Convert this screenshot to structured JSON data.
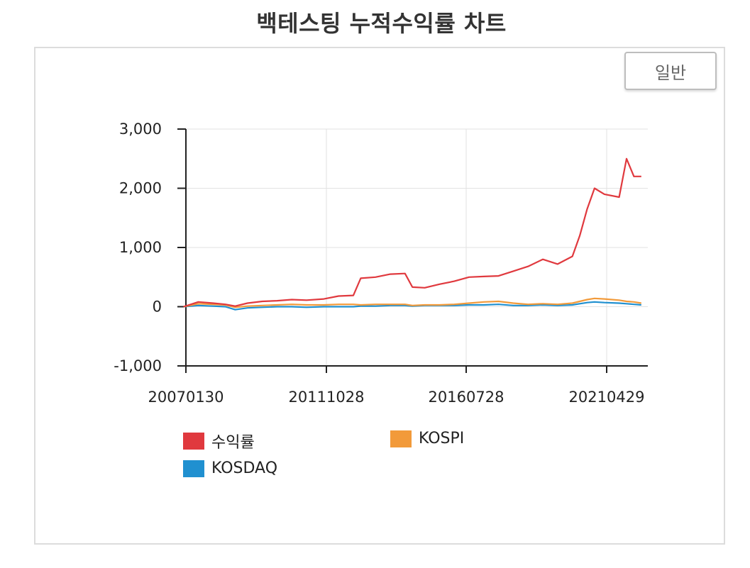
{
  "page": {
    "title": "백테스팅 누적수익률 차트"
  },
  "toolbar": {
    "mode_label": "일반"
  },
  "chart_data": {
    "type": "line",
    "title": "백테스팅 누적수익률 차트",
    "xlabel": "",
    "ylabel": "",
    "ylim": [
      -1000,
      3000
    ],
    "y_ticks": [
      {
        "value": 3000,
        "label": "3,000"
      },
      {
        "value": 2000,
        "label": "2,000"
      },
      {
        "value": 1000,
        "label": "1,000"
      },
      {
        "value": 0,
        "label": "0"
      },
      {
        "value": -1000,
        "label": "-1,000"
      }
    ],
    "x_ticks": [
      "20070130",
      "20111028",
      "20160728",
      "20210429"
    ],
    "grid": true,
    "legend_position": "bottom-left",
    "x": [
      "2007-01",
      "2007-07",
      "2008-01",
      "2008-06",
      "2008-10",
      "2009-03",
      "2009-09",
      "2010-03",
      "2010-09",
      "2011-03",
      "2011-10",
      "2012-04",
      "2012-10",
      "2013-01",
      "2013-07",
      "2014-01",
      "2014-07",
      "2014-10",
      "2015-03",
      "2015-09",
      "2016-03",
      "2016-09",
      "2017-03",
      "2017-09",
      "2018-03",
      "2018-09",
      "2019-03",
      "2019-09",
      "2020-03",
      "2020-06",
      "2020-09",
      "2020-12",
      "2021-04",
      "2021-10",
      "2022-01",
      "2022-04",
      "2022-07"
    ],
    "series": [
      {
        "name": "수익률",
        "color": "#e0393e",
        "values": [
          0,
          80,
          60,
          40,
          10,
          60,
          90,
          100,
          120,
          110,
          130,
          180,
          190,
          480,
          500,
          550,
          560,
          330,
          320,
          380,
          430,
          500,
          510,
          520,
          600,
          680,
          800,
          720,
          850,
          1200,
          1650,
          2000,
          1900,
          1850,
          2500,
          2200,
          2200
        ]
      },
      {
        "name": "KOSPI",
        "color": "#f29a3a",
        "values": [
          0,
          50,
          40,
          30,
          -10,
          10,
          20,
          30,
          40,
          30,
          30,
          40,
          40,
          30,
          40,
          40,
          40,
          20,
          30,
          30,
          40,
          60,
          80,
          90,
          60,
          40,
          50,
          40,
          60,
          90,
          120,
          140,
          130,
          110,
          90,
          80,
          60
        ]
      },
      {
        "name": "KOSDAQ",
        "color": "#2090d0",
        "values": [
          0,
          20,
          10,
          0,
          -50,
          -20,
          -10,
          0,
          0,
          -10,
          0,
          0,
          0,
          10,
          10,
          20,
          20,
          10,
          20,
          20,
          20,
          30,
          30,
          40,
          20,
          20,
          30,
          20,
          30,
          50,
          70,
          80,
          70,
          60,
          50,
          40,
          30
        ]
      }
    ]
  }
}
